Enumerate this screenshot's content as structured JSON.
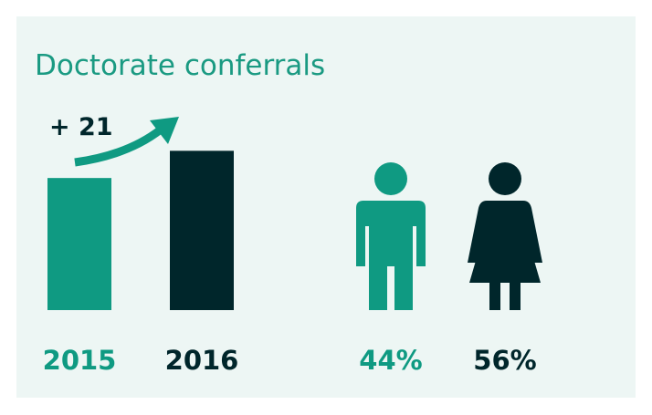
{
  "chart_data": [
    {
      "type": "bar",
      "title": "Doctorate conferrals",
      "annotation": "+ 21",
      "categories": [
        "2015",
        "2016"
      ],
      "values": [
        102,
        123
      ],
      "colors": [
        "#0f9a82",
        "#00262b"
      ]
    },
    {
      "type": "pictograph",
      "values": [
        44,
        56
      ],
      "value_labels": [
        "44%",
        "56%"
      ],
      "colors": [
        "#0f9a82",
        "#00262b"
      ]
    }
  ]
}
